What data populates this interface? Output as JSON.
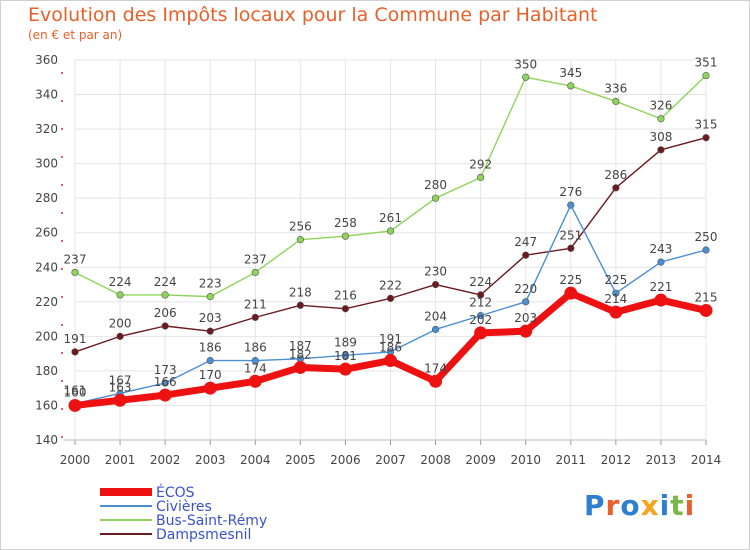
{
  "title": "Evolution des Impôts locaux pour la Commune par Habitant",
  "subtitle": "(en € et par an)",
  "logo": {
    "text": "Proxiti",
    "letters": [
      "P",
      "r",
      "o",
      "x",
      "i",
      "t",
      "i"
    ],
    "colors": [
      "#2e7fd0",
      "#e8602a",
      "#2e7fd0",
      "#f4a51c",
      "#2e7fd0",
      "#7ab648",
      "#e8602a"
    ]
  },
  "chart_data": {
    "type": "line",
    "x": [
      "2000",
      "2001",
      "2002",
      "2003",
      "2004",
      "2005",
      "2006",
      "2007",
      "2008",
      "2009",
      "2010",
      "2011",
      "2012",
      "2013",
      "2014"
    ],
    "ylim": [
      140,
      360
    ],
    "yticks": [
      "140",
      "160",
      "180",
      "200",
      "220",
      "240",
      "260",
      "280",
      "300",
      "320",
      "340",
      "360"
    ],
    "grid": true,
    "legend_position": "bottom-left",
    "series": [
      {
        "name": "Dampsmesnil",
        "color": "#6b1a1f",
        "values": [
          191,
          200,
          206,
          203,
          211,
          218,
          216,
          222,
          230,
          224,
          247,
          251,
          286,
          308,
          315
        ]
      },
      {
        "name": "Bus-Saint-Rémy",
        "color": "#8ed45a",
        "values": [
          237,
          224,
          224,
          223,
          237,
          256,
          258,
          261,
          280,
          292,
          350,
          345,
          336,
          326,
          351
        ]
      },
      {
        "name": "Civières",
        "color": "#4a8fd4",
        "values": [
          161,
          167,
          173,
          186,
          186,
          187,
          189,
          191,
          204,
          212,
          220,
          276,
          225,
          243,
          250
        ]
      },
      {
        "name": "ÉCOS",
        "color": "#ee1111",
        "values": [
          160,
          163,
          166,
          170,
          174,
          182,
          181,
          186,
          174,
          202,
          203,
          225,
          214,
          221,
          215
        ]
      }
    ],
    "legend_order": [
      "ÉCOS",
      "Civières",
      "Bus-Saint-Rémy",
      "Dampsmesnil"
    ]
  }
}
